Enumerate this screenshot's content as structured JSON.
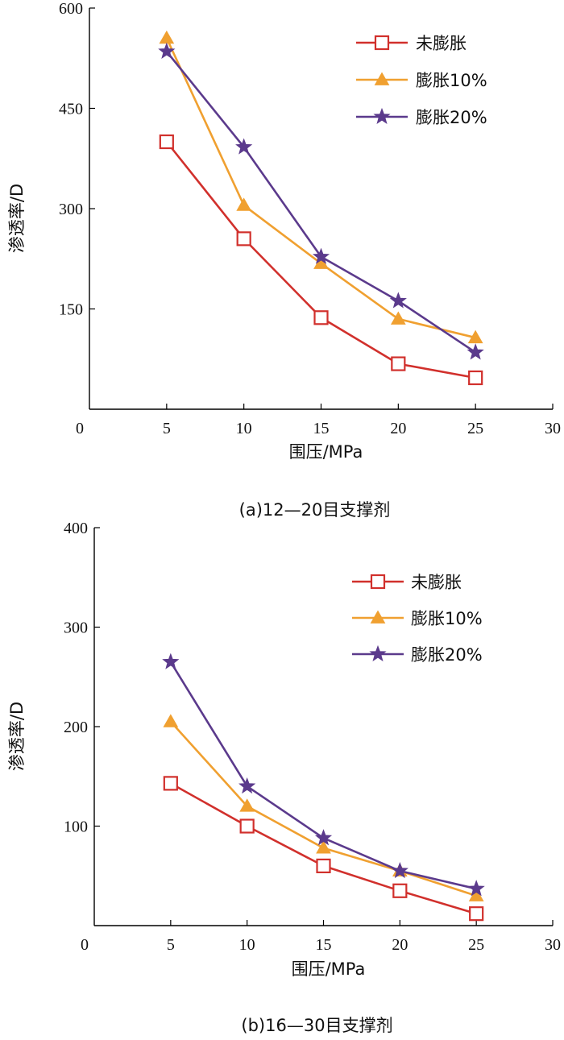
{
  "chart_data": [
    {
      "type": "line",
      "caption": "(a)12—20目支撑剂",
      "xlabel": "围压/MPa",
      "ylabel": "渗透率/D",
      "xlim": [
        0,
        30
      ],
      "ylim": [
        0,
        600
      ],
      "xticks": [
        0,
        5,
        10,
        15,
        20,
        25,
        30
      ],
      "yticks": [
        0,
        150,
        300,
        450,
        600
      ],
      "legend_position": "top-right",
      "series": [
        {
          "name": "未膨胀",
          "color": "#d1302c",
          "marker": "square",
          "x": [
            5,
            10,
            15,
            20,
            25
          ],
          "y": [
            400,
            255,
            137,
            68,
            47
          ]
        },
        {
          "name": "膨胀10%",
          "color": "#f0a030",
          "marker": "triangle",
          "x": [
            5,
            10,
            15,
            20,
            25
          ],
          "y": [
            555,
            305,
            218,
            135,
            107
          ]
        },
        {
          "name": "膨胀20%",
          "color": "#5b3a8c",
          "marker": "star",
          "x": [
            5,
            10,
            15,
            20,
            25
          ],
          "y": [
            535,
            392,
            228,
            162,
            85
          ]
        }
      ]
    },
    {
      "type": "line",
      "caption": "(b)16—30目支撑剂",
      "xlabel": "围压/MPa",
      "ylabel": "渗透率/D",
      "xlim": [
        0,
        30
      ],
      "ylim": [
        0,
        400
      ],
      "xticks": [
        0,
        5,
        10,
        15,
        20,
        25,
        30
      ],
      "yticks": [
        0,
        100,
        200,
        300,
        400
      ],
      "legend_position": "top-right",
      "series": [
        {
          "name": "未膨胀",
          "color": "#d1302c",
          "marker": "square",
          "x": [
            5,
            10,
            15,
            20,
            25
          ],
          "y": [
            143,
            100,
            60,
            35,
            12
          ]
        },
        {
          "name": "膨胀10%",
          "color": "#f0a030",
          "marker": "triangle",
          "x": [
            5,
            10,
            15,
            20,
            25
          ],
          "y": [
            205,
            120,
            78,
            55,
            30
          ]
        },
        {
          "name": "膨胀20%",
          "color": "#5b3a8c",
          "marker": "star",
          "x": [
            5,
            10,
            15,
            20,
            25
          ],
          "y": [
            265,
            140,
            88,
            55,
            37
          ]
        }
      ]
    }
  ]
}
